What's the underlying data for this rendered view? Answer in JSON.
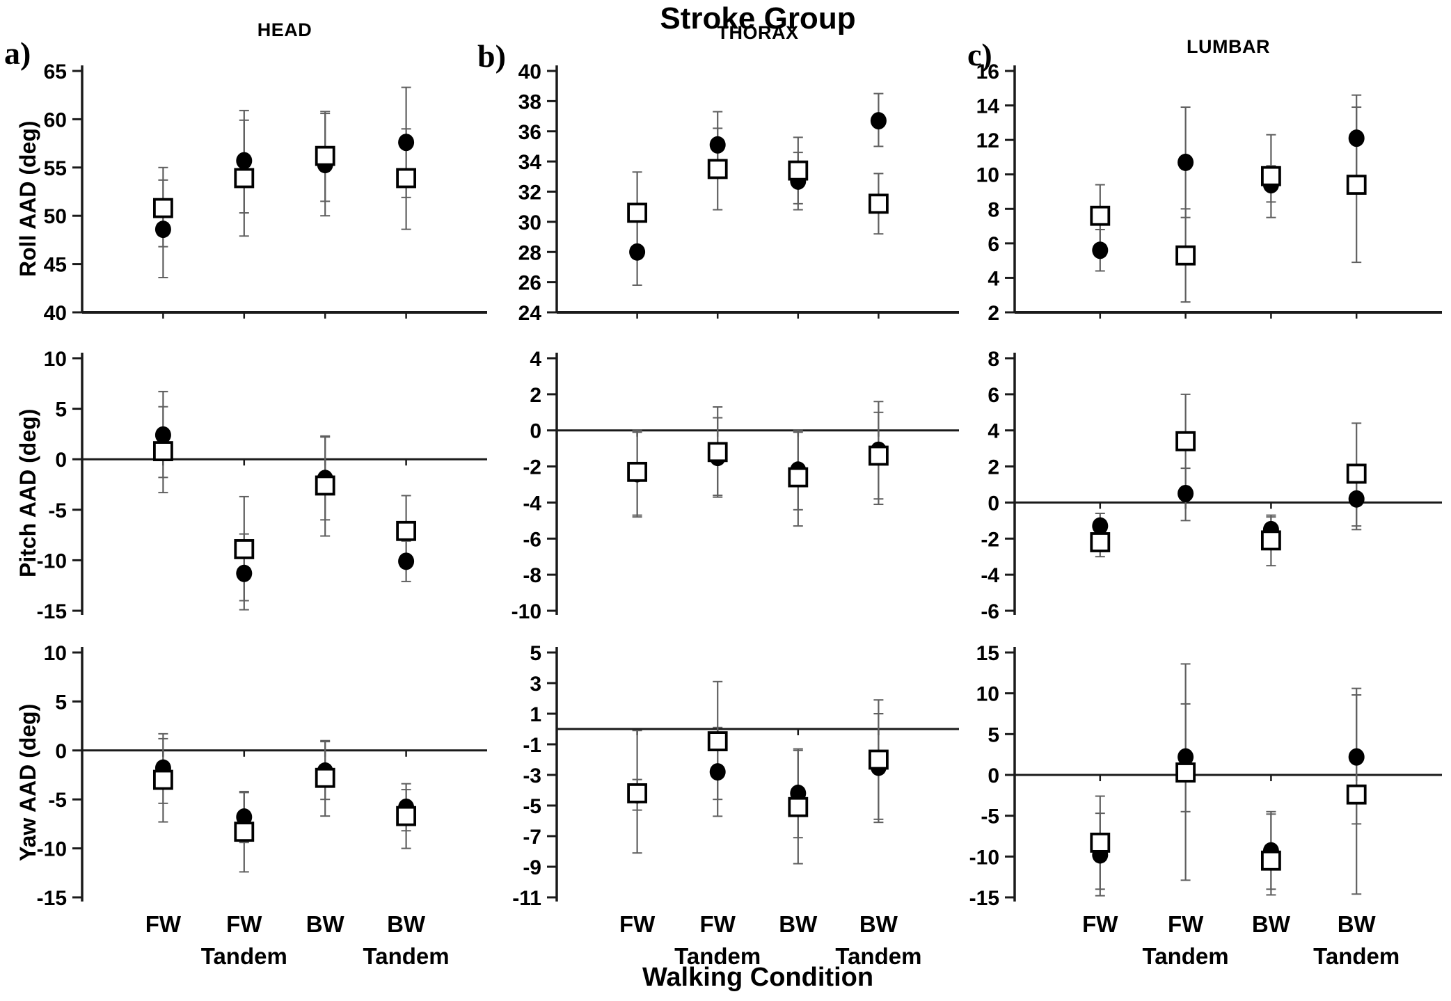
{
  "figure": {
    "suptitle": "Stroke Group",
    "xlabel": "Walking Condition",
    "panels": [
      {
        "letter": "a)",
        "title": "HEAD"
      },
      {
        "letter": "b)",
        "title": "THORAX"
      },
      {
        "letter": "c)",
        "title": "LUMBAR"
      }
    ],
    "row_labels": [
      "Roll AAD (deg)",
      "Pitch AAD (deg)",
      "Yaw AAD (deg)"
    ]
  },
  "colors": {
    "marker": "#000000",
    "marker_fill_open": "#ffffff",
    "error_bar": "#5f5f5f",
    "axis": "#1a1a1a",
    "background": "#ffffff"
  },
  "chart_data": {
    "type": "scatter",
    "marker_series": [
      "filled-circle",
      "open-square"
    ],
    "categories": [
      "FW",
      "FW Tandem",
      "BW",
      "BW Tandem"
    ],
    "category_label_lines": [
      [
        "FW"
      ],
      [
        "FW",
        "Tandem"
      ],
      [
        "BW"
      ],
      [
        "BW",
        "Tandem"
      ]
    ],
    "legend": "none",
    "subplots": [
      {
        "id": "head-roll",
        "row": 0,
        "col": 0,
        "segment": "HEAD",
        "measure": "Roll AAD (deg)",
        "ylim": [
          40,
          65
        ],
        "ytick_step": 5,
        "series": [
          {
            "marker": "filled-circle",
            "values": [
              48.6,
              55.7,
              55.3,
              57.6
            ],
            "err_low": [
              43.6,
              50.3,
              50.0,
              51.9
            ],
            "err_high": [
              53.7,
              60.9,
              60.6,
              63.3
            ]
          },
          {
            "marker": "open-square",
            "values": [
              50.8,
              53.9,
              56.2,
              53.9
            ],
            "err_low": [
              46.8,
              47.9,
              51.5,
              48.6
            ],
            "err_high": [
              55.0,
              59.9,
              60.8,
              59.0
            ]
          }
        ]
      },
      {
        "id": "thorax-roll",
        "row": 0,
        "col": 1,
        "segment": "THORAX",
        "measure": "Roll AAD (deg)",
        "ylim": [
          24,
          40
        ],
        "ytick_step": 2,
        "series": [
          {
            "marker": "filled-circle",
            "values": [
              28.0,
              35.1,
              32.7,
              36.7
            ],
            "err_low": [
              25.8,
              32.9,
              30.8,
              35.0
            ],
            "err_high": [
              30.2,
              37.3,
              34.6,
              38.5
            ]
          },
          {
            "marker": "open-square",
            "values": [
              30.6,
              33.5,
              33.4,
              31.2
            ],
            "err_low": [
              27.9,
              30.8,
              31.2,
              29.2
            ],
            "err_high": [
              33.3,
              36.2,
              35.6,
              33.2
            ]
          }
        ]
      },
      {
        "id": "lumbar-roll",
        "row": 0,
        "col": 2,
        "segment": "LUMBAR",
        "measure": "Roll AAD (deg)",
        "ylim": [
          2,
          16
        ],
        "ytick_step": 2,
        "series": [
          {
            "marker": "filled-circle",
            "values": [
              5.6,
              10.7,
              9.4,
              12.1
            ],
            "err_low": [
              4.4,
              7.5,
              8.4,
              9.6
            ],
            "err_high": [
              6.8,
              13.9,
              10.5,
              14.6
            ]
          },
          {
            "marker": "open-square",
            "values": [
              7.6,
              5.3,
              9.9,
              9.4
            ],
            "err_low": [
              5.8,
              2.6,
              7.5,
              4.9
            ],
            "err_high": [
              9.4,
              8.0,
              12.3,
              13.9
            ]
          }
        ]
      },
      {
        "id": "head-pitch",
        "row": 1,
        "col": 0,
        "segment": "HEAD",
        "measure": "Pitch AAD (deg)",
        "ylim": [
          -15,
          10
        ],
        "ytick_step": 5,
        "series": [
          {
            "marker": "filled-circle",
            "values": [
              2.4,
              -11.3,
              -1.9,
              -10.1
            ],
            "err_low": [
              -1.8,
              -14.9,
              -6.0,
              -12.1
            ],
            "err_high": [
              6.7,
              -7.4,
              2.2,
              -8.1
            ]
          },
          {
            "marker": "open-square",
            "values": [
              0.8,
              -8.9,
              -2.6,
              -7.1
            ],
            "err_low": [
              -3.3,
              -14.0,
              -7.6,
              -10.6
            ],
            "err_high": [
              5.2,
              -3.7,
              2.3,
              -3.6
            ]
          }
        ]
      },
      {
        "id": "thorax-pitch",
        "row": 1,
        "col": 1,
        "segment": "THORAX",
        "measure": "Pitch AAD (deg)",
        "ylim": [
          -10,
          4
        ],
        "ytick_step": 2,
        "series": [
          {
            "marker": "filled-circle",
            "values": [
              -2.4,
              -1.5,
              -2.2,
              -1.1
            ],
            "err_low": [
              -4.8,
              -3.7,
              -4.4,
              -3.8
            ],
            "err_high": [
              -0.1,
              0.7,
              0.0,
              1.6
            ]
          },
          {
            "marker": "open-square",
            "values": [
              -2.3,
              -1.2,
              -2.6,
              -1.4
            ],
            "err_low": [
              -4.7,
              -3.6,
              -5.3,
              -4.1
            ],
            "err_high": [
              0.0,
              1.3,
              -0.1,
              1.0
            ]
          }
        ]
      },
      {
        "id": "lumbar-pitch",
        "row": 1,
        "col": 2,
        "segment": "LUMBAR",
        "measure": "Pitch AAD (deg)",
        "ylim": [
          -6,
          8
        ],
        "ytick_step": 2,
        "series": [
          {
            "marker": "filled-circle",
            "values": [
              -1.3,
              0.5,
              -1.5,
              0.2
            ],
            "err_low": [
              -2.0,
              -1.0,
              -2.2,
              -1.5
            ],
            "err_high": [
              -0.6,
              1.9,
              -0.8,
              1.9
            ]
          },
          {
            "marker": "open-square",
            "values": [
              -2.2,
              3.4,
              -2.1,
              1.6
            ],
            "err_low": [
              -3.0,
              0.8,
              -3.5,
              -1.3
            ],
            "err_high": [
              -1.5,
              6.0,
              -0.7,
              4.4
            ]
          }
        ]
      },
      {
        "id": "head-yaw",
        "row": 2,
        "col": 0,
        "segment": "HEAD",
        "measure": "Yaw AAD (deg)",
        "ylim": [
          -15,
          10
        ],
        "ytick_step": 5,
        "series": [
          {
            "marker": "filled-circle",
            "values": [
              -1.8,
              -6.8,
              -2.1,
              -5.8
            ],
            "err_low": [
              -5.4,
              -9.4,
              -5.0,
              -8.2
            ],
            "err_high": [
              1.7,
              -4.2,
              0.9,
              -3.4
            ]
          },
          {
            "marker": "open-square",
            "values": [
              -3.0,
              -8.3,
              -2.8,
              -6.7
            ],
            "err_low": [
              -7.3,
              -12.4,
              -6.7,
              -10.0
            ],
            "err_high": [
              1.2,
              -4.3,
              1.0,
              -4.0
            ]
          }
        ]
      },
      {
        "id": "thorax-yaw",
        "row": 2,
        "col": 1,
        "segment": "THORAX",
        "measure": "Yaw AAD (deg)",
        "ylim": [
          -11,
          5
        ],
        "ytick_step": 2,
        "series": [
          {
            "marker": "filled-circle",
            "values": [
              -4.3,
              -2.8,
              -4.2,
              -2.5
            ],
            "err_low": [
              -5.3,
              -5.7,
              -7.1,
              -6.1
            ],
            "err_high": [
              -3.3,
              0.1,
              -1.3,
              1.0
            ]
          },
          {
            "marker": "open-square",
            "values": [
              -4.2,
              -0.8,
              -5.1,
              -2.0
            ],
            "err_low": [
              -8.1,
              -4.6,
              -8.8,
              -5.9
            ],
            "err_high": [
              -0.1,
              3.1,
              -1.4,
              1.9
            ]
          }
        ]
      },
      {
        "id": "lumbar-yaw",
        "row": 2,
        "col": 2,
        "segment": "LUMBAR",
        "measure": "Yaw AAD (deg)",
        "ylim": [
          -15,
          15
        ],
        "ytick_step": 5,
        "series": [
          {
            "marker": "filled-circle",
            "values": [
              -9.8,
              2.2,
              -9.3,
              2.2
            ],
            "err_low": [
              -14.8,
              -4.5,
              -14.0,
              -6.0
            ],
            "err_high": [
              -4.7,
              8.7,
              -4.5,
              10.6
            ]
          },
          {
            "marker": "open-square",
            "values": [
              -8.3,
              0.3,
              -10.5,
              -2.4
            ],
            "err_low": [
              -14.0,
              -12.9,
              -14.7,
              -14.6
            ],
            "err_high": [
              -2.6,
              13.6,
              -4.8,
              9.8
            ]
          }
        ]
      }
    ]
  }
}
